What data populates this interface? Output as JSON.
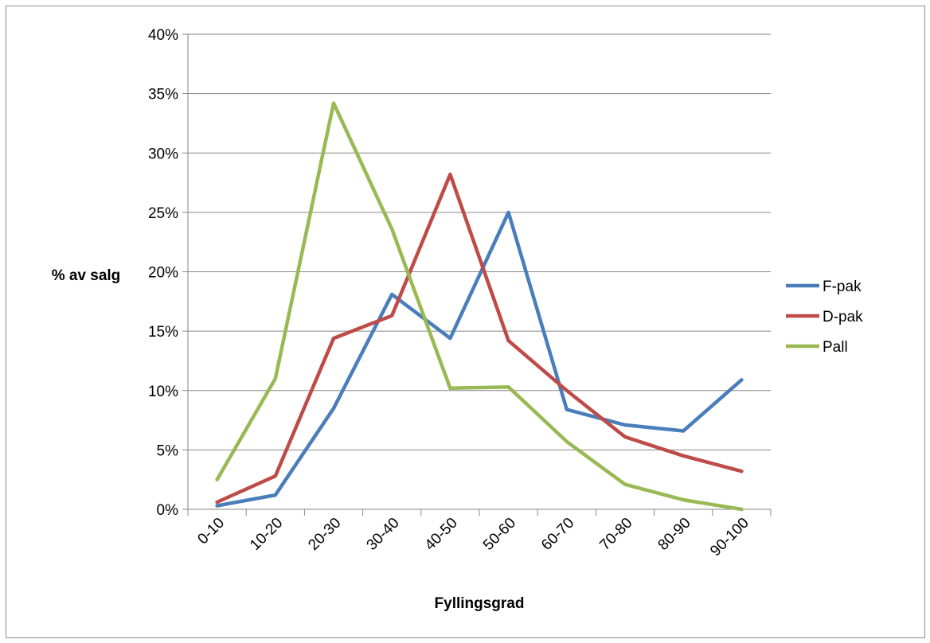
{
  "chart_data": {
    "type": "line",
    "title": "",
    "xlabel": "Fyllingsgrad",
    "ylabel": "% av salg",
    "categories": [
      "0-10",
      "10-20",
      "20-30",
      "30-40",
      "40-50",
      "50-60",
      "60-70",
      "70-80",
      "80-90",
      "90-100"
    ],
    "ylim": [
      0,
      40
    ],
    "yticks": [
      "0%",
      "5%",
      "10%",
      "15%",
      "20%",
      "25%",
      "30%",
      "35%",
      "40%"
    ],
    "ytick_values": [
      0,
      5,
      10,
      15,
      20,
      25,
      30,
      35,
      40
    ],
    "grid": "horizontal",
    "legend_position": "right",
    "series": [
      {
        "name": "F-pak",
        "color": "#4a7ebb",
        "values": [
          0.3,
          1.2,
          8.5,
          18.1,
          14.4,
          25.0,
          8.4,
          7.1,
          6.6,
          10.9
        ]
      },
      {
        "name": "D-pak",
        "color": "#be4b48",
        "values": [
          0.6,
          2.8,
          14.4,
          16.3,
          28.2,
          14.2,
          10.0,
          6.1,
          4.5,
          3.2
        ]
      },
      {
        "name": "Pall",
        "color": "#98b954",
        "values": [
          2.5,
          11.0,
          34.2,
          23.6,
          10.2,
          10.3,
          5.7,
          2.1,
          0.8,
          0.0
        ]
      }
    ]
  }
}
